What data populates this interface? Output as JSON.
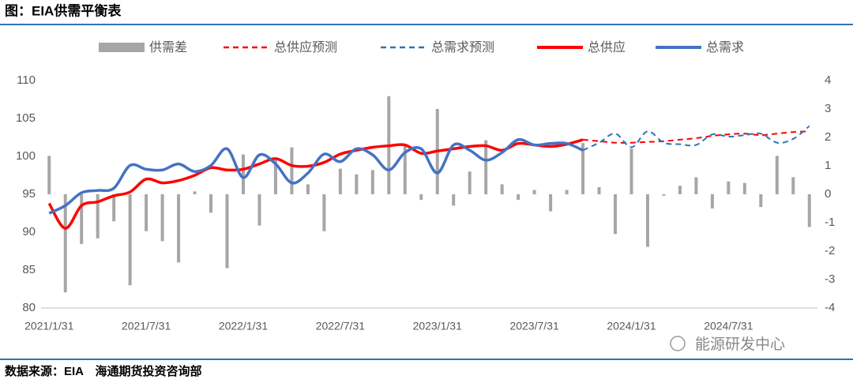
{
  "chart_data": {
    "type": "combo",
    "title": "图：EIA供需平衡表",
    "categories": [
      "2021/1/31",
      null,
      null,
      null,
      null,
      null,
      "2021/7/31",
      null,
      null,
      null,
      null,
      null,
      "2022/1/31",
      null,
      null,
      null,
      null,
      null,
      "2022/7/31",
      null,
      null,
      null,
      null,
      null,
      "2023/1/31",
      null,
      null,
      null,
      null,
      null,
      "2023/7/31",
      null,
      null,
      null,
      null,
      null,
      "2024/1/31",
      null,
      null,
      null,
      null,
      null,
      "2024/7/31",
      null,
      null,
      null,
      null,
      null
    ],
    "ylim": [
      80,
      110
    ],
    "yticks": [
      80,
      85,
      90,
      95,
      100,
      105,
      110
    ],
    "y2lim": [
      -4,
      4
    ],
    "y2ticks": [
      -4,
      -3,
      -2,
      -1,
      0,
      1,
      2,
      3,
      4
    ],
    "series": [
      {
        "name": "供需差",
        "type": "bar",
        "axis": "y2",
        "color": "#a6a6a6",
        "values": [
          1.35,
          -3.45,
          -1.75,
          -1.55,
          -0.95,
          -3.2,
          -1.3,
          -1.65,
          -2.4,
          0.1,
          -0.65,
          -2.6,
          1.4,
          -1.1,
          1.2,
          1.65,
          0.35,
          -1.3,
          0.9,
          0.7,
          0.85,
          3.45,
          1.75,
          -0.2,
          3.0,
          -0.4,
          0.8,
          1.9,
          0.35,
          -0.2,
          0.15,
          -0.6,
          0.15,
          1.8,
          0.25,
          -1.4,
          1.6,
          -1.85,
          -0.05,
          0.3,
          0.6,
          -0.5,
          0.45,
          0.4,
          -0.45,
          1.35,
          0.6,
          -1.15
        ]
      },
      {
        "name": "总供应预测",
        "type": "line",
        "dashed": true,
        "color": "#ff0000",
        "values": [
          null,
          null,
          null,
          null,
          null,
          null,
          null,
          null,
          null,
          null,
          null,
          null,
          null,
          null,
          null,
          null,
          null,
          null,
          null,
          null,
          null,
          null,
          null,
          null,
          null,
          null,
          null,
          null,
          null,
          null,
          null,
          null,
          null,
          102.2,
          102.0,
          101.8,
          101.8,
          101.9,
          102.0,
          102.2,
          102.4,
          102.7,
          102.9,
          103.0,
          102.8,
          103.0,
          103.2,
          103.3
        ]
      },
      {
        "name": "总需求预测",
        "type": "line",
        "dashed": true,
        "color": "#2e75b6",
        "values": [
          null,
          null,
          null,
          null,
          null,
          null,
          null,
          null,
          null,
          null,
          null,
          null,
          null,
          null,
          null,
          null,
          null,
          null,
          null,
          null,
          null,
          null,
          null,
          null,
          null,
          null,
          null,
          null,
          null,
          null,
          null,
          null,
          null,
          100.8,
          101.8,
          103.0,
          101.2,
          103.3,
          101.8,
          101.6,
          101.5,
          102.9,
          102.6,
          102.8,
          103.0,
          101.8,
          102.3,
          104.0
        ]
      },
      {
        "name": "总供应",
        "type": "line",
        "dashed": false,
        "color": "#ff0000",
        "values": [
          93.8,
          90.5,
          93.5,
          94.0,
          94.8,
          95.3,
          97.0,
          96.5,
          96.8,
          97.5,
          98.5,
          98.2,
          98.3,
          99.0,
          99.7,
          98.8,
          98.7,
          99.2,
          100.3,
          100.8,
          101.2,
          101.4,
          101.5,
          100.4,
          100.7,
          101.0,
          101.3,
          101.4,
          100.8,
          101.7,
          101.5,
          101.3,
          101.6,
          102.2,
          null,
          null,
          null,
          null,
          null,
          null,
          null,
          null,
          null,
          null,
          null,
          null,
          null,
          null
        ]
      },
      {
        "name": "总需求",
        "type": "line",
        "dashed": false,
        "color": "#4472c4",
        "values": [
          92.5,
          93.5,
          95.2,
          95.5,
          95.8,
          98.8,
          98.3,
          98.2,
          99.0,
          98.0,
          98.8,
          101.0,
          97.2,
          100.2,
          99.0,
          96.5,
          97.8,
          100.3,
          99.3,
          101.0,
          100.2,
          98.2,
          100.5,
          101.0,
          97.8,
          101.5,
          100.8,
          99.5,
          100.5,
          102.2,
          101.5,
          101.7,
          101.7,
          100.8,
          null,
          null,
          null,
          null,
          null,
          null,
          null,
          null,
          null,
          null,
          null,
          null,
          null,
          null
        ]
      }
    ]
  },
  "source": "数据来源：EIA　海通期货投资咨询部",
  "watermark": "能源研发中心"
}
